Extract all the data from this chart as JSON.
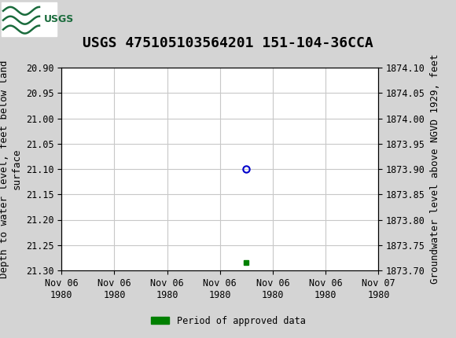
{
  "title": "USGS 475105103564201 151-104-36CCA",
  "left_ylabel_lines": [
    "Depth to water level, feet below land",
    "surface"
  ],
  "right_ylabel": "Groundwater level above NGVD 1929, feet",
  "xlabel_ticks": [
    "Nov 06\n1980",
    "Nov 06\n1980",
    "Nov 06\n1980",
    "Nov 06\n1980",
    "Nov 06\n1980",
    "Nov 06\n1980",
    "Nov 07\n1980"
  ],
  "ylim_left_top": 20.9,
  "ylim_left_bottom": 21.3,
  "ylim_right_top": 1874.1,
  "ylim_right_bottom": 1873.7,
  "yticks_left": [
    20.9,
    20.95,
    21.0,
    21.05,
    21.1,
    21.15,
    21.2,
    21.25,
    21.3
  ],
  "ytick_labels_left": [
    "20.90",
    "20.95",
    "21.00",
    "21.05",
    "21.10",
    "21.15",
    "21.20",
    "21.25",
    "21.30"
  ],
  "yticks_right": [
    1874.1,
    1874.05,
    1874.0,
    1873.95,
    1873.9,
    1873.85,
    1873.8,
    1873.75,
    1873.7
  ],
  "ytick_labels_right": [
    "1874.10",
    "1874.05",
    "1874.00",
    "1873.95",
    "1873.90",
    "1873.85",
    "1873.80",
    "1873.75",
    "1873.70"
  ],
  "data_point_x": 3.5,
  "data_point_y": 21.1,
  "green_bar_x": 3.5,
  "green_bar_y": 21.285,
  "xlim": [
    0,
    6
  ],
  "xtick_positions": [
    0,
    1,
    2,
    3,
    4,
    5,
    6
  ],
  "header_color": "#1a6b3c",
  "background_color": "#d4d4d4",
  "plot_bg_color": "#ffffff",
  "grid_color": "#c8c8c8",
  "circle_color": "#0000cc",
  "green_color": "#008000",
  "legend_label": "Period of approved data",
  "title_fontsize": 13,
  "axis_label_fontsize": 9,
  "tick_fontsize": 8.5
}
